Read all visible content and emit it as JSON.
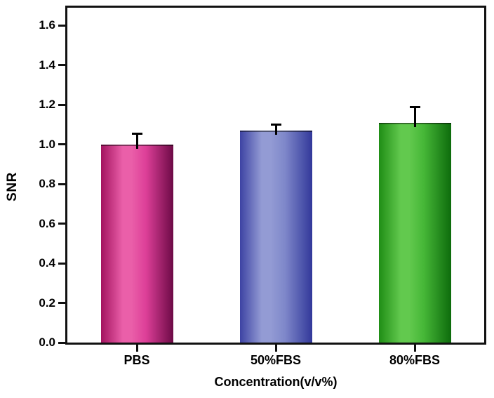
{
  "chart_data": {
    "type": "bar",
    "title": "",
    "xlabel": "Concentration(v/v%)",
    "ylabel": "SNR",
    "categories": [
      "PBS",
      "50%FBS",
      "80%FBS"
    ],
    "values": [
      1.0,
      1.07,
      1.11
    ],
    "errors": [
      0.055,
      0.032,
      0.082
    ],
    "ylim": [
      0,
      1.69
    ],
    "ytick_labels": [
      "0.0",
      "0.2",
      "0.4",
      "0.6",
      "0.8",
      "1.0",
      "1.2",
      "1.4",
      "1.6"
    ],
    "ytick_values": [
      0.0,
      0.2,
      0.4,
      0.6,
      0.8,
      1.0,
      1.2,
      1.4,
      1.6
    ],
    "grid": false,
    "legend": null,
    "frame_color": "#111111",
    "error_bar_color": "#000000",
    "bar_colors": [
      {
        "name": "magenta",
        "edge_left": "#a3135f",
        "light": "#ea5fa9",
        "mid": "#dd3f98",
        "edge_right": "#6d0a46"
      },
      {
        "name": "blue",
        "edge_left": "#3d43a3",
        "light": "#939bd4",
        "mid": "#7f88ca",
        "edge_right": "#32389a"
      },
      {
        "name": "green",
        "edge_left": "#1f8d15",
        "light": "#62c94e",
        "mid": "#46b737",
        "edge_right": "#0d6b0c"
      }
    ]
  }
}
